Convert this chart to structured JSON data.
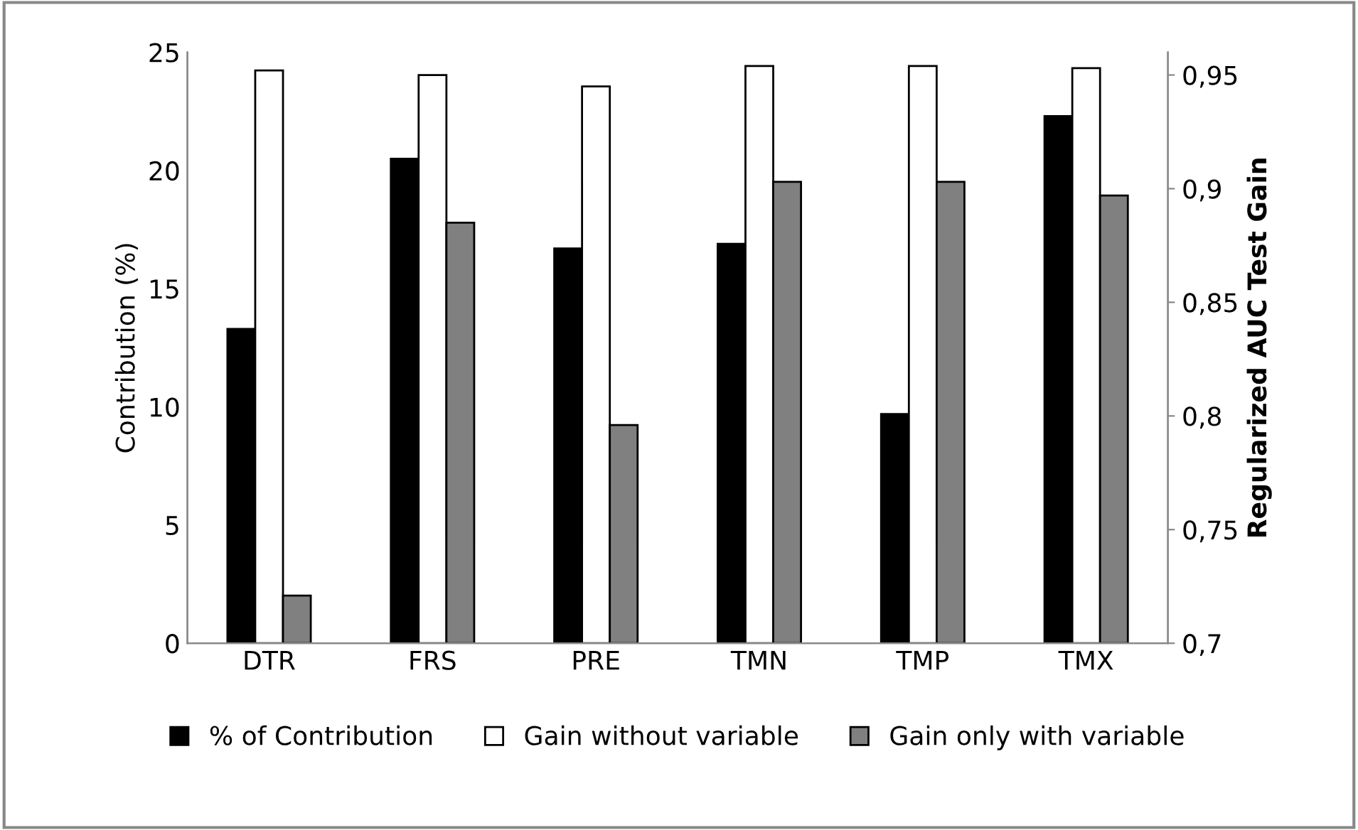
{
  "chart_data": {
    "type": "bar",
    "categories": [
      "DTR",
      "FRS",
      "PRE",
      "TMN",
      "TMP",
      "TMX"
    ],
    "ylabel": "Contribution (%)",
    "y2label": "Regularized AUC Test Gain",
    "ylim": [
      0,
      25
    ],
    "yticks": [
      0,
      5,
      10,
      15,
      20,
      25
    ],
    "y2lim": [
      0.7,
      0.96
    ],
    "y2ticks": [
      {
        "value": 0.7,
        "label": "0,7"
      },
      {
        "value": 0.75,
        "label": "0,75"
      },
      {
        "value": 0.8,
        "label": "0,8"
      },
      {
        "value": 0.85,
        "label": "0,85"
      },
      {
        "value": 0.9,
        "label": "0,9"
      },
      {
        "value": 0.95,
        "label": "0,95"
      }
    ],
    "series": [
      {
        "name": "% of Contribution",
        "color": "#000000",
        "values": [
          13.3,
          20.5,
          16.7,
          16.9,
          9.7,
          22.3
        ]
      },
      {
        "name": "Gain without variable",
        "color": "#ffffff",
        "axis": "y2",
        "values": [
          0.952,
          0.95,
          0.945,
          0.954,
          0.954,
          0.953
        ]
      },
      {
        "name": "Gain only with variable",
        "color": "#808080",
        "axis": "y2",
        "values": [
          0.721,
          0.885,
          0.796,
          0.903,
          0.903,
          0.897
        ]
      }
    ],
    "legend": "bottom",
    "grid": false
  }
}
